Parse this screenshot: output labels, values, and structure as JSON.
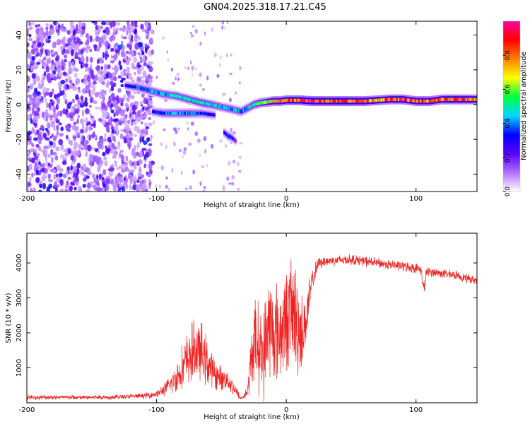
{
  "title": "GN04.2025.318.17.21.C45",
  "chart_data": [
    {
      "type": "heatmap",
      "title": "GN04.2025.318.17.21.C45",
      "xlabel": "Height of straight line (km)",
      "ylabel": "Frequency (Hz)",
      "xlim": [
        -200,
        147
      ],
      "ylim": [
        -50,
        48
      ],
      "x_ticks": [
        -200,
        -100,
        0,
        100
      ],
      "x_tick_labels": [
        "-200",
        "-100",
        "0",
        "100"
      ],
      "y_ticks": [
        -40,
        -20,
        0,
        20,
        40
      ],
      "y_tick_labels": [
        "-40",
        "-20",
        "0",
        "20",
        "40"
      ],
      "colorbar": {
        "label": "Normalized spectral amplitude",
        "range": [
          0,
          1
        ],
        "ticks": [
          0,
          0.2,
          0.4,
          0.6,
          0.8
        ],
        "tick_labels": [
          "0.0",
          "0.2",
          "0.4",
          "0.6",
          "0.8"
        ],
        "colors": [
          "#ffffff",
          "#b070ff",
          "#5a00ff",
          "#0000ff",
          "#00d8ff",
          "#00ff40",
          "#ffff00",
          "#ff8000",
          "#ff0000",
          "#ff00a0"
        ]
      },
      "ridge": {
        "x": [
          -124,
          -115,
          -105,
          -95,
          -85,
          -75,
          -65,
          -58,
          -52,
          -46,
          -40,
          -35,
          -30,
          -25,
          -20,
          -15,
          -10,
          -5,
          0,
          10,
          20,
          40,
          60,
          80,
          90,
          100,
          110,
          120,
          135,
          147
        ],
        "freq": [
          11,
          10,
          8,
          6,
          5,
          3,
          1,
          0,
          -1,
          -2,
          -3,
          -4,
          -2,
          0,
          1,
          1.5,
          2,
          2,
          2.5,
          2.5,
          2,
          2,
          2,
          3,
          3,
          2,
          2,
          3,
          3,
          3
        ],
        "amplitude": [
          0.3,
          0.4,
          0.45,
          0.45,
          0.5,
          0.5,
          0.55,
          0.5,
          0.45,
          0.45,
          0.45,
          0.45,
          0.5,
          0.55,
          0.6,
          0.7,
          0.75,
          0.8,
          0.9,
          0.95,
          0.95,
          0.95,
          0.9,
          0.85,
          0.9,
          0.85,
          0.85,
          0.85,
          0.9,
          0.85
        ]
      },
      "secondary_branches": [
        {
          "name": "lower branch",
          "x": [
            -103,
            -95,
            -85,
            -75,
            -65,
            -55
          ],
          "freq": [
            -4,
            -5,
            -5,
            -5,
            -5,
            -6
          ],
          "amplitude": [
            0.35,
            0.4,
            0.45,
            0.45,
            0.35,
            0.3
          ]
        },
        {
          "name": "low-frequency spot",
          "x": [
            -48,
            -45,
            -42,
            -39
          ],
          "freq": [
            -16,
            -18,
            -19,
            -21
          ],
          "amplitude": [
            0.3,
            0.4,
            0.35,
            0.2
          ]
        }
      ]
    },
    {
      "type": "line",
      "title": "",
      "xlabel": "Height of straight line (km)",
      "ylabel": "SNR (10 * v/v)",
      "xlim": [
        -200,
        147
      ],
      "ylim": [
        0,
        4850
      ],
      "x_ticks": [
        -200,
        -100,
        0,
        100
      ],
      "x_tick_labels": [
        "-200",
        "-100",
        "0",
        "100"
      ],
      "y_ticks": [
        1000,
        2000,
        3000,
        4000
      ],
      "y_tick_labels": [
        "1000",
        "2000",
        "3000",
        "4000"
      ],
      "series": [
        {
          "name": "SNR",
          "color": "#ee2222",
          "x": [
            -200,
            -180,
            -160,
            -140,
            -120,
            -110,
            -100,
            -95,
            -90,
            -85,
            -80,
            -75,
            -70,
            -65,
            -60,
            -55,
            -50,
            -45,
            -40,
            -35,
            -30,
            -25,
            -20,
            -17,
            -14,
            -10,
            -5,
            0,
            3,
            5,
            8,
            10,
            12,
            15,
            20,
            25,
            30,
            40,
            50,
            60,
            70,
            80,
            90,
            100,
            104,
            106,
            108,
            110,
            120,
            130,
            140,
            147
          ],
          "y": [
            150,
            160,
            150,
            160,
            180,
            200,
            250,
            350,
            500,
            700,
            1000,
            1300,
            1500,
            1400,
            1100,
            800,
            700,
            650,
            400,
            120,
            300,
            1800,
            1500,
            1300,
            2300,
            2000,
            2000,
            2400,
            2600,
            2600,
            2300,
            2100,
            2000,
            2300,
            3500,
            4000,
            4050,
            4080,
            4100,
            4050,
            4000,
            3950,
            3900,
            3850,
            3800,
            3200,
            3750,
            3750,
            3700,
            3650,
            3550,
            3500
          ],
          "amplitude": [
            80,
            80,
            80,
            80,
            80,
            90,
            120,
            200,
            300,
            500,
            800,
            1000,
            1100,
            1000,
            800,
            500,
            400,
            350,
            250,
            60,
            200,
            1500,
            1500,
            1800,
            1900,
            1800,
            1700,
            1700,
            1900,
            2000,
            2000,
            1800,
            1300,
            1000,
            400,
            200,
            180,
            180,
            180,
            180,
            170,
            170,
            170,
            170,
            160,
            300,
            160,
            160,
            160,
            150,
            150,
            150
          ]
        }
      ]
    }
  ]
}
